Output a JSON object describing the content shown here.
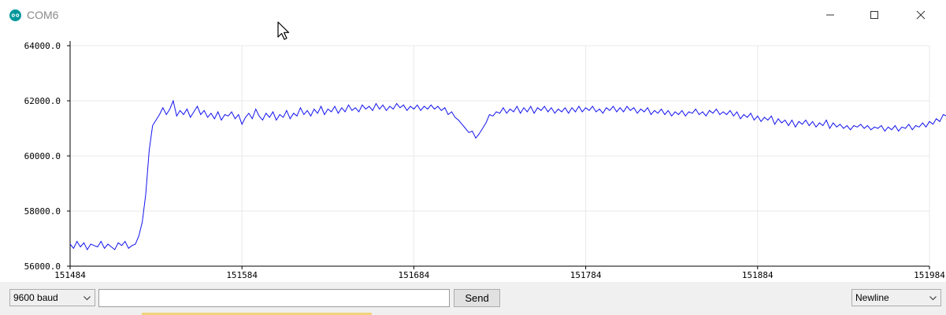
{
  "window": {
    "title": "COM6",
    "icons": [
      "arduino-logo-icon",
      "minimize-icon",
      "maximize-icon",
      "close-icon",
      "mouse-cursor-icon"
    ]
  },
  "footer": {
    "baud_rate": "9600 baud",
    "send_label": "Send",
    "line_ending": "Newline",
    "message_value": ""
  },
  "colors": {
    "line": "#1414f0",
    "grid": "#e8e8e8",
    "arduino_teal": "#00979c"
  },
  "chart_data": {
    "type": "line",
    "title": "",
    "xlabel": "",
    "ylabel": "",
    "xlim": [
      151484,
      151984
    ],
    "ylim": [
      56000,
      64000
    ],
    "x_ticks": [
      "151484",
      "151584",
      "151684",
      "151784",
      "151884",
      "151984"
    ],
    "y_ticks": [
      "56000.0",
      "58000.0",
      "60000.0",
      "62000.0",
      "64000.0"
    ],
    "grid": true,
    "series": [
      {
        "x_start": 151484,
        "x_step": 2,
        "values": [
          56800,
          56650,
          56900,
          56700,
          56850,
          56600,
          56800,
          56750,
          56700,
          56900,
          56650,
          56800,
          56700,
          56600,
          56850,
          56750,
          56900,
          56650,
          56750,
          56800,
          57100,
          57600,
          58600,
          60200,
          61100,
          61300,
          61500,
          61750,
          61500,
          61700,
          62000,
          61450,
          61650,
          61500,
          61700,
          61400,
          61600,
          61800,
          61500,
          61650,
          61400,
          61550,
          61350,
          61600,
          61300,
          61500,
          61450,
          61600,
          61350,
          61500,
          61150,
          61400,
          61550,
          61350,
          61700,
          61450,
          61300,
          61550,
          61400,
          61600,
          61300,
          61500,
          61400,
          61650,
          61350,
          61550,
          61450,
          61750,
          61500,
          61650,
          61450,
          61700,
          61550,
          61800,
          61500,
          61700,
          61600,
          61800,
          61550,
          61750,
          61600,
          61850,
          61650,
          61750,
          61600,
          61850,
          61700,
          61800,
          61650,
          61900,
          61700,
          61850,
          61650,
          61800,
          61700,
          61900,
          61750,
          61850,
          61650,
          61800,
          61700,
          61850,
          61650,
          61800,
          61700,
          61850,
          61700,
          61800,
          61650,
          61750,
          61500,
          61600,
          61400,
          61300,
          61150,
          61000,
          60850,
          60900,
          60650,
          60800,
          61000,
          61200,
          61500,
          61450,
          61600,
          61550,
          61750,
          61550,
          61700,
          61600,
          61800,
          61550,
          61750,
          61600,
          61800,
          61550,
          61750,
          61650,
          61800,
          61600,
          61750,
          61550,
          61700,
          61600,
          61750,
          61550,
          61750,
          61600,
          61800,
          61600,
          61750,
          61650,
          61800,
          61600,
          61700,
          61550,
          61750,
          61650,
          61800,
          61600,
          61750,
          61600,
          61800,
          61650,
          61750,
          61550,
          61700,
          61600,
          61750,
          61500,
          61650,
          61550,
          61700,
          61500,
          61650,
          61450,
          61600,
          61500,
          61650,
          61450,
          61600,
          61550,
          61700,
          61500,
          61600,
          61450,
          61650,
          61550,
          61700,
          61500,
          61600,
          61500,
          61650,
          61450,
          61600,
          61350,
          61500,
          61400,
          61550,
          61300,
          61450,
          61250,
          61400,
          61300,
          61450,
          61150,
          61350,
          61200,
          61300,
          61100,
          61300,
          61050,
          61250,
          61150,
          61300,
          61100,
          61250,
          61050,
          61200,
          61100,
          61300,
          61000,
          61200,
          61050,
          61150,
          61000,
          61100,
          60950,
          61100,
          61050,
          61150,
          61000,
          61100,
          60950,
          61050,
          61000,
          61100,
          60900,
          61050,
          60950,
          61100,
          60900,
          61050,
          61000,
          61150,
          60950,
          61100,
          61050,
          61200,
          61050,
          61250,
          61150,
          61350,
          61250,
          61500,
          61450,
          61600,
          61550,
          61700,
          61500,
          61800
        ]
      }
    ]
  }
}
